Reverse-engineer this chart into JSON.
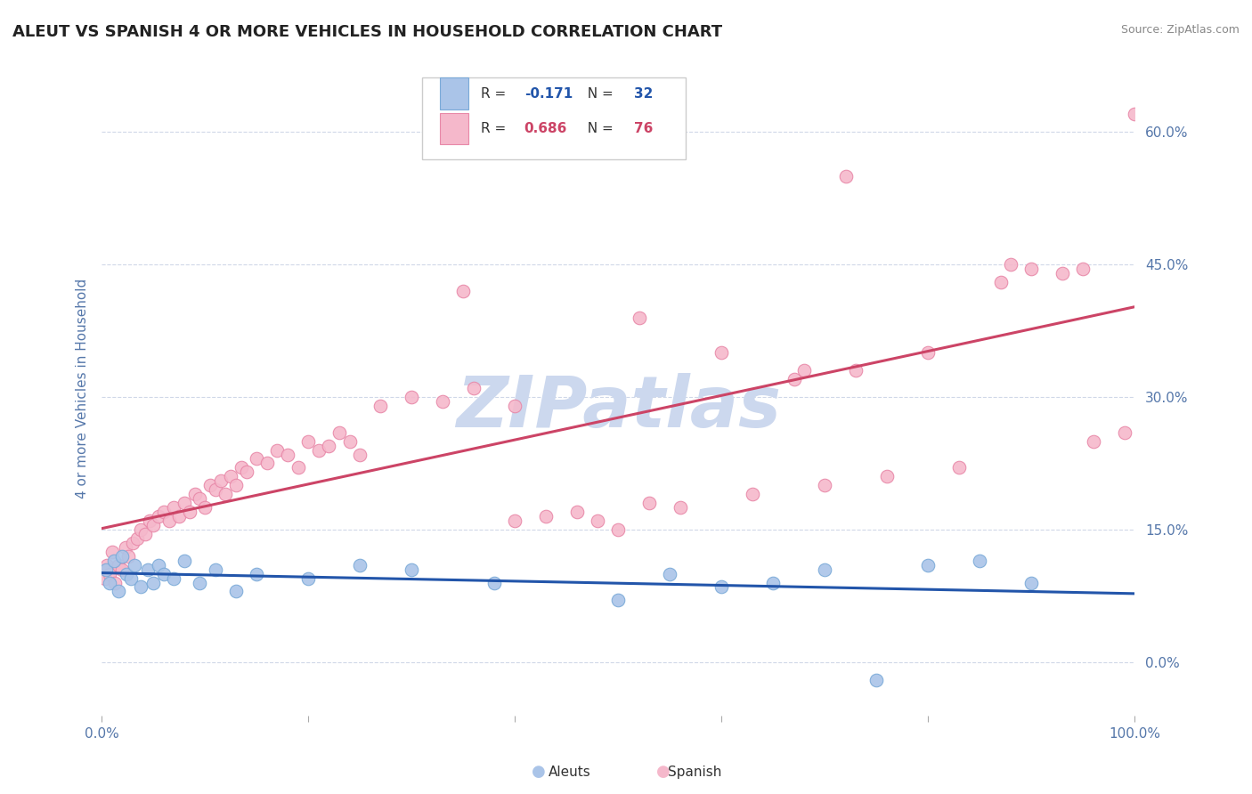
{
  "title": "ALEUT VS SPANISH 4 OR MORE VEHICLES IN HOUSEHOLD CORRELATION CHART",
  "source": "Source: ZipAtlas.com",
  "ylabel": "4 or more Vehicles in Household",
  "ytick_values": [
    0,
    15,
    30,
    45,
    60
  ],
  "xlim": [
    0,
    100
  ],
  "ylim": [
    -6,
    68
  ],
  "aleut_color": "#aac4e8",
  "aleut_edge_color": "#7aaad8",
  "spanish_color": "#f5b8cb",
  "spanish_edge_color": "#e888a8",
  "aleut_line_color": "#2255aa",
  "spanish_line_color": "#cc4466",
  "R_aleut": -0.171,
  "N_aleut": 32,
  "R_spanish": 0.686,
  "N_spanish": 76,
  "watermark": "ZIPatlas",
  "watermark_color": "#ccd8ee",
  "grid_color": "#d0d8e8",
  "title_color": "#222222",
  "axis_label_color": "#5577aa",
  "background_color": "#ffffff",
  "aleut_x": [
    0.4,
    0.8,
    1.2,
    1.6,
    2.0,
    2.4,
    2.8,
    3.2,
    3.8,
    4.5,
    5.0,
    5.5,
    6.0,
    7.0,
    8.0,
    9.5,
    11.0,
    13.0,
    15.0,
    20.0,
    25.0,
    30.0,
    38.0,
    50.0,
    55.0,
    60.0,
    65.0,
    70.0,
    75.0,
    80.0,
    85.0,
    90.0
  ],
  "aleut_y": [
    10.5,
    9.0,
    11.5,
    8.0,
    12.0,
    10.0,
    9.5,
    11.0,
    8.5,
    10.5,
    9.0,
    11.0,
    10.0,
    9.5,
    11.5,
    9.0,
    10.5,
    8.0,
    10.0,
    9.5,
    11.0,
    10.5,
    9.0,
    7.0,
    10.0,
    8.5,
    9.0,
    10.5,
    -2.0,
    11.0,
    11.5,
    9.0
  ],
  "spanish_x": [
    0.3,
    0.5,
    0.8,
    1.0,
    1.3,
    1.6,
    2.0,
    2.3,
    2.6,
    3.0,
    3.4,
    3.8,
    4.2,
    4.6,
    5.0,
    5.5,
    6.0,
    6.5,
    7.0,
    7.5,
    8.0,
    8.5,
    9.0,
    9.5,
    10.0,
    10.5,
    11.0,
    11.5,
    12.0,
    12.5,
    13.0,
    13.5,
    14.0,
    15.0,
    16.0,
    17.0,
    18.0,
    19.0,
    20.0,
    21.0,
    22.0,
    23.0,
    24.0,
    25.0,
    27.0,
    30.0,
    33.0,
    36.0,
    40.0,
    43.0,
    46.0,
    50.0,
    53.0,
    56.0,
    60.0,
    63.0,
    67.0,
    70.0,
    73.0,
    76.0,
    80.0,
    83.0,
    87.0,
    90.0,
    93.0,
    96.0,
    99.0,
    35.0,
    52.0,
    68.0,
    88.0,
    95.0,
    40.0,
    48.0,
    72.0,
    100.0
  ],
  "spanish_y": [
    9.5,
    11.0,
    10.0,
    12.5,
    9.0,
    11.0,
    10.5,
    13.0,
    12.0,
    13.5,
    14.0,
    15.0,
    14.5,
    16.0,
    15.5,
    16.5,
    17.0,
    16.0,
    17.5,
    16.5,
    18.0,
    17.0,
    19.0,
    18.5,
    17.5,
    20.0,
    19.5,
    20.5,
    19.0,
    21.0,
    20.0,
    22.0,
    21.5,
    23.0,
    22.5,
    24.0,
    23.5,
    22.0,
    25.0,
    24.0,
    24.5,
    26.0,
    25.0,
    23.5,
    29.0,
    30.0,
    29.5,
    31.0,
    16.0,
    16.5,
    17.0,
    15.0,
    18.0,
    17.5,
    35.0,
    19.0,
    32.0,
    20.0,
    33.0,
    21.0,
    35.0,
    22.0,
    43.0,
    44.5,
    44.0,
    25.0,
    26.0,
    42.0,
    39.0,
    33.0,
    45.0,
    44.5,
    29.0,
    16.0,
    55.0,
    62.0
  ]
}
